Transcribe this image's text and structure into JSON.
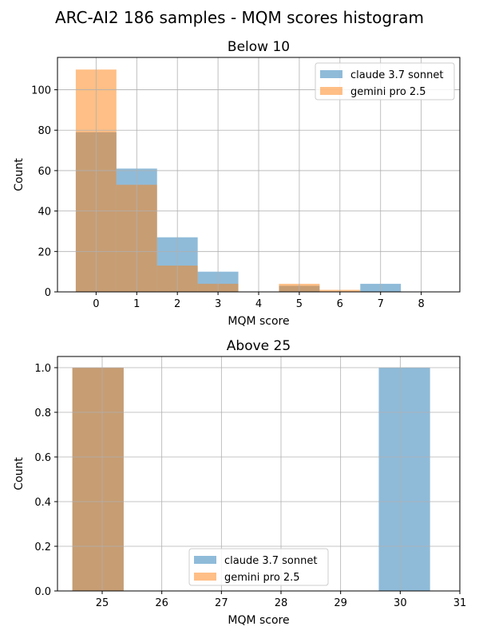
{
  "figure": {
    "title": "ARC-AI2 186 samples -  MQM scores histogram"
  },
  "colors": {
    "claude": "#1f77b4",
    "gemini": "#ff7f0e",
    "grid": "#b0b0b0"
  },
  "chart_data": [
    {
      "type": "bar",
      "title": "Below 10",
      "xlabel": "MQM score",
      "ylabel": "Count",
      "xlim": [
        -0.95,
        8.95
      ],
      "ylim": [
        0,
        116
      ],
      "xticks": [
        0,
        1,
        2,
        3,
        4,
        5,
        6,
        7,
        8
      ],
      "yticks": [
        0,
        20,
        40,
        60,
        80,
        100
      ],
      "bar_width": 1,
      "grid": true,
      "legend": "upper right",
      "series": [
        {
          "name": "claude 3.7 sonnet",
          "color": "#1f77b4",
          "x": [
            0,
            1,
            2,
            3,
            4,
            5,
            6,
            7,
            8
          ],
          "values": [
            79,
            61,
            27,
            10,
            0,
            3,
            0,
            4,
            0
          ]
        },
        {
          "name": "gemini pro 2.5",
          "color": "#ff7f0e",
          "x": [
            0,
            1,
            2,
            3,
            4,
            5,
            6,
            7,
            8
          ],
          "values": [
            110,
            53,
            13,
            4,
            0,
            4,
            1,
            0,
            0
          ]
        }
      ]
    },
    {
      "type": "bar",
      "title": "Above 25",
      "xlabel": "MQM score",
      "ylabel": "Count",
      "xlim": [
        24.25,
        31.0
      ],
      "ylim": [
        0,
        1.05
      ],
      "xticks": [
        25,
        26,
        27,
        28,
        29,
        30,
        31
      ],
      "yticks": [
        0.0,
        0.2,
        0.4,
        0.6,
        0.8,
        1.0
      ],
      "ytick_labels": [
        "0.0",
        "0.2",
        "0.4",
        "0.6",
        "0.8",
        "1.0"
      ],
      "grid": true,
      "legend": "lower center",
      "series": [
        {
          "name": "claude 3.7 sonnet",
          "color": "#1f77b4",
          "bars": [
            {
              "x0": 24.5,
              "x1": 25.36,
              "value": 1
            },
            {
              "x0": 29.64,
              "x1": 30.5,
              "value": 1
            }
          ]
        },
        {
          "name": "gemini pro 2.5",
          "color": "#ff7f0e",
          "bars": [
            {
              "x0": 24.5,
              "x1": 25.36,
              "value": 1
            }
          ]
        }
      ]
    }
  ]
}
